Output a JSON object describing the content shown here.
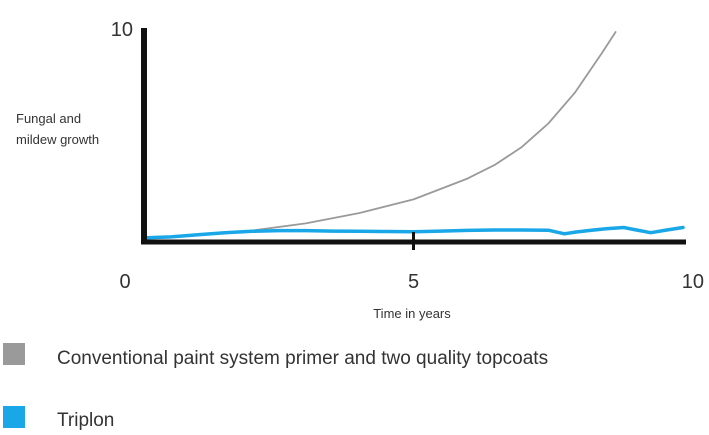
{
  "chart_data": {
    "type": "line",
    "title": "",
    "xlabel": "Time in years",
    "ylabel": "Fungal and mildew growth",
    "xlim": [
      0,
      10
    ],
    "ylim": [
      0,
      10
    ],
    "x_ticks": [
      0,
      5,
      10
    ],
    "y_ticks": [
      10
    ],
    "grid": false,
    "legend_position": "bottom",
    "series": [
      {
        "name": "Conventional paint system primer and two quality topcoats",
        "color": "#9a9a9a",
        "x": [
          0,
          1,
          2,
          3,
          4,
          5,
          6,
          6.5,
          7,
          7.5,
          8,
          8.5,
          8.75
        ],
        "y": [
          0.1,
          0.25,
          0.45,
          0.8,
          1.3,
          1.95,
          2.95,
          3.6,
          4.45,
          5.6,
          7.1,
          9.0,
          10.0
        ]
      },
      {
        "name": "Triplon",
        "color": "#1aa7e8",
        "x": [
          0,
          0.5,
          1,
          1.5,
          2,
          2.5,
          3,
          3.5,
          4,
          4.5,
          5,
          5.5,
          6,
          6.5,
          7,
          7.5,
          7.8,
          8,
          8.3,
          8.6,
          8.9,
          9.1,
          9.4,
          9.7,
          10
        ],
        "y": [
          0.1,
          0.15,
          0.25,
          0.35,
          0.42,
          0.45,
          0.45,
          0.43,
          0.42,
          0.41,
          0.4,
          0.43,
          0.46,
          0.48,
          0.48,
          0.47,
          0.3,
          0.38,
          0.47,
          0.55,
          0.6,
          0.5,
          0.35,
          0.48,
          0.6
        ]
      }
    ]
  }
}
